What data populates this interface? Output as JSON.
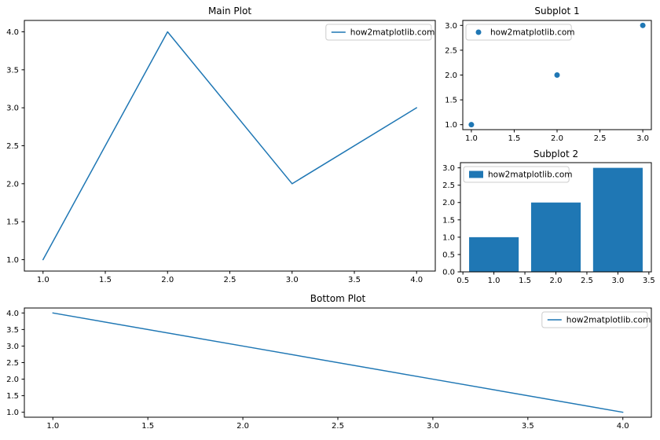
{
  "colors": {
    "series": "#1f77b4",
    "background": "#ffffff",
    "axis": "#000000",
    "tick_label": "#000000",
    "legend_border": "#cccccc",
    "legend_background": "#ffffff"
  },
  "legend_label": "how2matplotlib.com",
  "chart_data": [
    {
      "type": "line",
      "title": "Main Plot",
      "x": [
        1.0,
        2.0,
        3.0,
        4.0
      ],
      "y": [
        1.0,
        4.0,
        2.0,
        3.0
      ],
      "xlim": [
        0.85,
        4.15
      ],
      "ylim": [
        0.85,
        4.15
      ],
      "xticks": [
        1.0,
        1.5,
        2.0,
        2.5,
        3.0,
        3.5,
        4.0
      ],
      "yticks": [
        1.0,
        1.5,
        2.0,
        2.5,
        3.0,
        3.5,
        4.0
      ],
      "xlabel": "",
      "ylabel": "",
      "grid": false,
      "color": "#1f77b4",
      "legend": {
        "label": "how2matplotlib.com",
        "position": "upper-right",
        "marker": "line"
      }
    },
    {
      "type": "scatter",
      "title": "Subplot 1",
      "x": [
        1.0,
        2.0,
        3.0
      ],
      "y": [
        1.0,
        2.0,
        3.0
      ],
      "xlim": [
        0.9,
        3.1
      ],
      "ylim": [
        0.9,
        3.1
      ],
      "xticks": [
        1.0,
        1.5,
        2.0,
        2.5,
        3.0
      ],
      "yticks": [
        1.0,
        1.5,
        2.0,
        2.5,
        3.0
      ],
      "xlabel": "",
      "ylabel": "",
      "grid": false,
      "color": "#1f77b4",
      "legend": {
        "label": "how2matplotlib.com",
        "position": "upper-left",
        "marker": "dot"
      }
    },
    {
      "type": "bar",
      "title": "Subplot 2",
      "x": [
        1.0,
        2.0,
        3.0
      ],
      "y": [
        1.0,
        2.0,
        3.0
      ],
      "bar_width": 0.8,
      "xlim": [
        0.46,
        3.54
      ],
      "ylim": [
        0.0,
        3.15
      ],
      "xticks": [
        0.5,
        1.0,
        1.5,
        2.0,
        2.5,
        3.0,
        3.5
      ],
      "yticks": [
        0.0,
        0.5,
        1.0,
        1.5,
        2.0,
        2.5,
        3.0
      ],
      "xlabel": "",
      "ylabel": "",
      "grid": false,
      "color": "#1f77b4",
      "legend": {
        "label": "how2matplotlib.com",
        "position": "upper-left",
        "marker": "rect"
      }
    },
    {
      "type": "line",
      "title": "Bottom Plot",
      "x": [
        1.0,
        2.0,
        3.0,
        4.0
      ],
      "y": [
        4.0,
        3.0,
        2.0,
        1.0
      ],
      "xlim": [
        0.85,
        4.15
      ],
      "ylim": [
        0.85,
        4.15
      ],
      "xticks": [
        1.0,
        1.5,
        2.0,
        2.5,
        3.0,
        3.5,
        4.0
      ],
      "yticks": [
        1.0,
        1.5,
        2.0,
        2.5,
        3.0,
        3.5,
        4.0
      ],
      "xlabel": "",
      "ylabel": "",
      "grid": false,
      "color": "#1f77b4",
      "legend": {
        "label": "how2matplotlib.com",
        "position": "upper-right",
        "marker": "line"
      }
    }
  ]
}
